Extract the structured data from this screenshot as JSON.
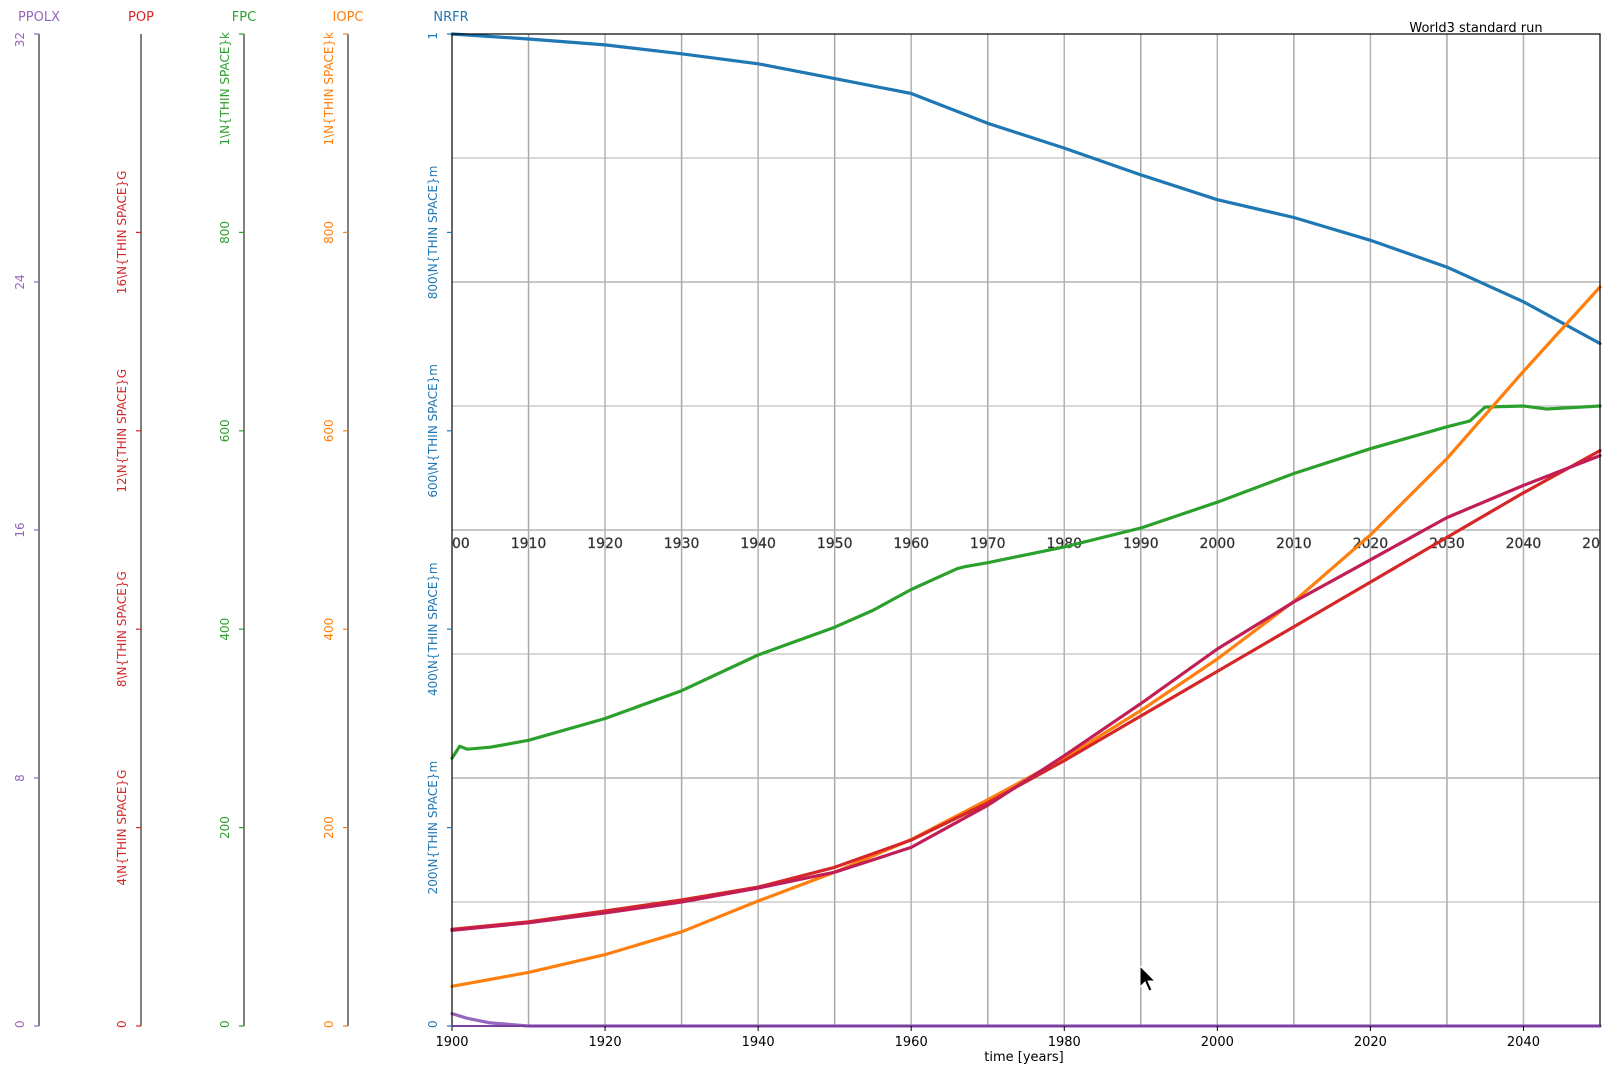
{
  "chart_data": {
    "type": "line",
    "title": "World3 standard run",
    "xlabel": "time [years]",
    "xlim": [
      1900,
      2050
    ],
    "x_ticks": [
      "1900",
      "1920",
      "1940",
      "1960",
      "1980",
      "2000",
      "2020",
      "2040"
    ],
    "decade_labels": [
      "00",
      "1910",
      "1920",
      "1930",
      "1940",
      "1950",
      "1960",
      "1970",
      "1980",
      "1990",
      "2000",
      "2010",
      "2020",
      "2030",
      "2040",
      "20"
    ],
    "grid": true,
    "axes": [
      {
        "name": "PPOLX",
        "color": "#9467bd",
        "ylim": [
          0,
          32
        ],
        "ticks": [
          "0",
          "8",
          "16",
          "24",
          "32"
        ]
      },
      {
        "name": "POP",
        "color": "#d62728",
        "ylim": [
          0,
          20000000000
        ],
        "ticks": [
          "0",
          "4\\N{THIN SPACE}G",
          "8\\N{THIN SPACE}G",
          "12\\N{THIN SPACE}G",
          "16\\N{THIN SPACE}G"
        ]
      },
      {
        "name": "FPC",
        "color": "#2ca02c",
        "ylim": [
          0,
          1000
        ],
        "ticks": [
          "0",
          "200",
          "400",
          "600",
          "800",
          "1\\N{THIN SPACE}k"
        ]
      },
      {
        "name": "IOPC",
        "color": "#ff7f0e",
        "ylim": [
          0,
          1000
        ],
        "ticks": [
          "0",
          "200",
          "400",
          "600",
          "800",
          "1\\N{THIN SPACE}k"
        ]
      },
      {
        "name": "NRFR",
        "color": "#1f77b4",
        "ylim": [
          0,
          1
        ],
        "ticks": [
          "0",
          "200\\N{THIN SPACE}m",
          "400\\N{THIN SPACE}m",
          "600\\N{THIN SPACE}m",
          "800\\N{THIN SPACE}m",
          "1"
        ]
      }
    ],
    "series": [
      {
        "name": "NRFR",
        "color": "#1f77b4",
        "x": [
          1900,
          1910,
          1920,
          1930,
          1940,
          1950,
          1960,
          1970,
          1980,
          1990,
          2000,
          2010,
          2020,
          2030,
          2040,
          2050
        ],
        "y": [
          1.0,
          0.995,
          0.989,
          0.98,
          0.97,
          0.955,
          0.94,
          0.91,
          0.885,
          0.858,
          0.833,
          0.815,
          0.792,
          0.765,
          0.73,
          0.688
        ]
      },
      {
        "name": "FPC",
        "color": "#2ca02c",
        "x": [
          1900,
          1901,
          1902,
          1905,
          1910,
          1920,
          1930,
          1940,
          1950,
          1955,
          1960,
          1966,
          1967,
          1970,
          1980,
          1990,
          2000,
          2010,
          2020,
          2030,
          2033,
          2035,
          2040,
          2043,
          2050
        ],
        "y": [
          270,
          282,
          279,
          281,
          288,
          310,
          338,
          374,
          402,
          419,
          440,
          461,
          463,
          467,
          483,
          502,
          528,
          557,
          582,
          604,
          610,
          624,
          625,
          622,
          625
        ]
      },
      {
        "name": "IOPC",
        "color": "#ff7f0e",
        "x": [
          1900,
          1910,
          1920,
          1930,
          1940,
          1950,
          1960,
          1970,
          1980,
          1990,
          2000,
          2010,
          2020,
          2030,
          2040,
          2050
        ],
        "y": [
          40,
          54,
          72,
          95,
          126,
          155,
          188,
          228,
          270,
          318,
          370,
          428,
          495,
          572,
          660,
          745
        ]
      },
      {
        "name": "POP",
        "color": "#d62728",
        "x": [
          1900,
          1910,
          1920,
          1930,
          1940,
          1950,
          1960,
          1970,
          1980,
          1990,
          2000,
          2010,
          2020,
          2030,
          2040,
          2050
        ],
        "y": [
          1950000000,
          2100000000,
          2320000000,
          2540000000,
          2800000000,
          3200000000,
          3750000000,
          4500000000,
          5350000000,
          6250000000,
          7150000000,
          8050000000,
          8950000000,
          9850000000,
          10750000000,
          11600000000
        ]
      },
      {
        "name": "POP",
        "color": "#c21e56",
        "x": [
          1900,
          1910,
          1920,
          1930,
          1940,
          1950,
          1960,
          1970,
          1980,
          1990,
          2000,
          2010,
          2020,
          2030,
          2040,
          2050
        ],
        "y": [
          1930000000,
          2080000000,
          2280000000,
          2500000000,
          2780000000,
          3100000000,
          3600000000,
          4450000000,
          5450000000,
          6500000000,
          7600000000,
          8550000000,
          9400000000,
          10250000000,
          10900000000,
          11500000000
        ]
      },
      {
        "name": "PPOLX",
        "color": "#9467bd",
        "x": [
          1900,
          1902,
          1905,
          1910,
          1950,
          2050
        ],
        "y": [
          0.4,
          0.25,
          0.1,
          0.0,
          0.0,
          0.0
        ]
      }
    ]
  }
}
